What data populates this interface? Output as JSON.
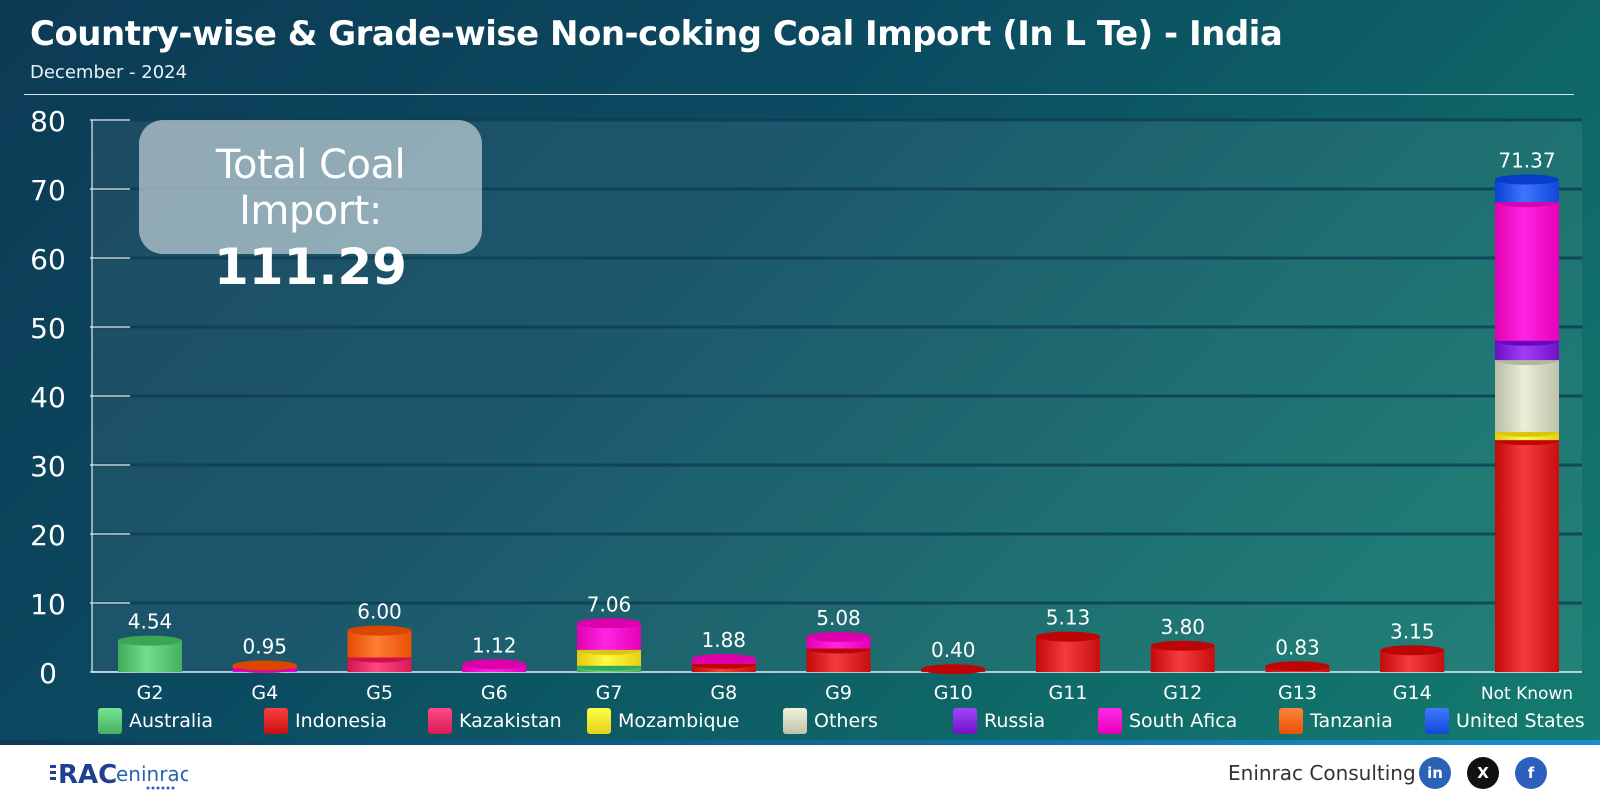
{
  "header": {
    "title": "Country-wise & Grade-wise Non-coking Coal Import (In L Te) - India",
    "subtitle": "December - 2024"
  },
  "total_box": {
    "label": "Total Coal Import:",
    "value": "111.29"
  },
  "colors": {
    "Australia": "#5fc97a",
    "Indonesia": "#e02828",
    "Kazakistan": "#f2336e",
    "Mozambique": "#ffe830",
    "Others": "#d6dcc4",
    "Russia": "#8a2be2",
    "South Afica": "#ff10d0",
    "Tanzania": "#ff6a20",
    "United States": "#2a60f0"
  },
  "chart_data": {
    "type": "bar",
    "stacked": true,
    "title": "Country-wise & Grade-wise Non-coking Coal Import (In L Te) - India",
    "subtitle": "December - 2024",
    "xlabel": "",
    "ylabel": "",
    "ylim": [
      0,
      80
    ],
    "yticks": [
      0,
      10,
      20,
      30,
      40,
      50,
      60,
      70,
      80
    ],
    "grid": true,
    "legend_position": "bottom",
    "categories": [
      "G2",
      "G4",
      "G5",
      "G6",
      "G7",
      "G8",
      "G9",
      "G10",
      "G11",
      "G12",
      "G13",
      "G14",
      "Not Known"
    ],
    "totals": [
      "4.54",
      "0.95",
      "6.00",
      "1.12",
      "7.06",
      "1.88",
      "5.08",
      "0.40",
      "5.13",
      "3.80",
      "0.83",
      "3.15",
      "71.37"
    ],
    "series": [
      {
        "name": "Australia",
        "values": [
          4.54,
          0,
          0,
          0,
          0.9,
          0,
          0,
          0,
          0,
          0,
          0,
          0,
          0
        ]
      },
      {
        "name": "Indonesia",
        "values": [
          0,
          0,
          0,
          0,
          0,
          1.2,
          3.4,
          0.4,
          5.13,
          3.8,
          0.83,
          3.15,
          33.6
        ]
      },
      {
        "name": "Kazakistan",
        "values": [
          0,
          0,
          2.1,
          0,
          0,
          0,
          0,
          0,
          0,
          0,
          0,
          0,
          0
        ]
      },
      {
        "name": "Mozambique",
        "values": [
          0,
          0,
          0,
          0,
          2.3,
          0,
          0,
          0,
          0,
          0,
          0,
          0,
          1.2
        ]
      },
      {
        "name": "Others",
        "values": [
          0,
          0,
          0,
          0,
          0,
          0,
          0,
          0,
          0,
          0,
          0,
          0,
          10.4
        ]
      },
      {
        "name": "Russia",
        "values": [
          0,
          0,
          0,
          0,
          0,
          0,
          0,
          0,
          0,
          0,
          0,
          0,
          2.8
        ]
      },
      {
        "name": "South Afica",
        "values": [
          0,
          0.6,
          0,
          1.12,
          3.86,
          0.68,
          1.68,
          0,
          0,
          0,
          0,
          0,
          20.1
        ]
      },
      {
        "name": "Tanzania",
        "values": [
          0,
          0.35,
          3.9,
          0,
          0,
          0,
          0,
          0,
          0,
          0,
          0,
          0,
          0
        ]
      },
      {
        "name": "United States",
        "values": [
          0,
          0,
          0,
          0,
          0,
          0,
          0,
          0,
          0,
          0,
          0,
          0,
          3.27
        ]
      }
    ]
  },
  "footer": {
    "logo_text": "RAC eninrac",
    "brand": "Eninrac Consulting",
    "social": [
      {
        "name": "linkedin",
        "label": "in",
        "color": "#2a63b5"
      },
      {
        "name": "x",
        "label": "X",
        "color": "#111111"
      },
      {
        "name": "facebook",
        "label": "f",
        "color": "#2d5fbf"
      }
    ]
  }
}
